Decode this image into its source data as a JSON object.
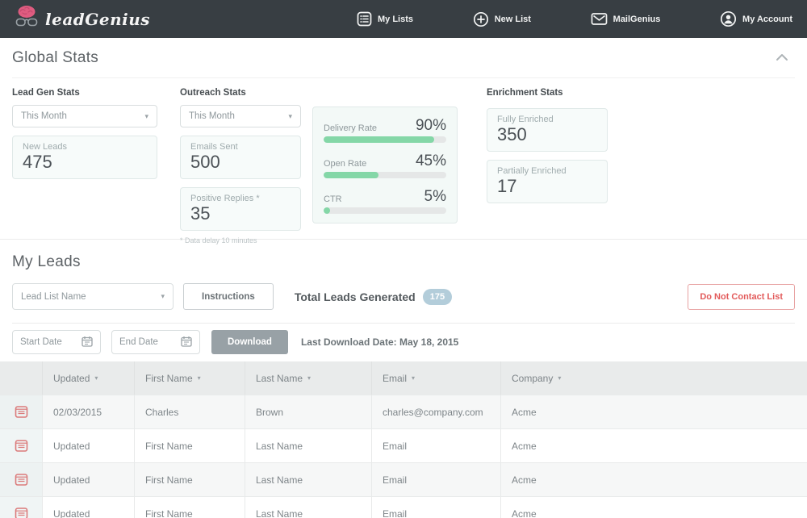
{
  "icons": {
    "caret_down": "▾"
  },
  "colors": {
    "navbar_bg": "#383e43",
    "brand_pink": "#df5c80",
    "bar_green": "#84d7a7",
    "danger_red": "#e25a5a",
    "badge_blue": "#b3cdda",
    "download_gray": "#98a1a6"
  },
  "navbar": {
    "brand": "leadGenius",
    "items": [
      {
        "label": "My Lists",
        "icon": "list"
      },
      {
        "label": "New List",
        "icon": "plus-circle"
      },
      {
        "label": "MailGenius",
        "icon": "envelope"
      },
      {
        "label": "My Account",
        "icon": "user-circle"
      }
    ]
  },
  "global_stats": {
    "title": "Global Stats",
    "lead_gen": {
      "heading": "Lead Gen Stats",
      "period": "This Month",
      "card": {
        "label": "New Leads",
        "value": "475"
      }
    },
    "outreach": {
      "heading": "Outreach Stats",
      "period": "This Month",
      "cards": [
        {
          "label": "Emails Sent",
          "value": "500"
        },
        {
          "label": "Positive Replies *",
          "value": "35"
        }
      ],
      "footnote": "* Data delay 10 minutes"
    },
    "rates": [
      {
        "label": "Delivery Rate",
        "value": "90%",
        "percent": 90
      },
      {
        "label": "Open Rate",
        "value": "45%",
        "percent": 45
      },
      {
        "label": "CTR",
        "value": "5%",
        "percent": 5
      }
    ],
    "enrichment": {
      "heading": "Enrichment Stats",
      "cards": [
        {
          "label": "Fully Enriched",
          "value": "350"
        },
        {
          "label": "Partially Enriched",
          "value": "17"
        }
      ]
    }
  },
  "my_leads": {
    "title": "My Leads",
    "lead_list_placeholder": "Lead List Name",
    "instructions_label": "Instructions",
    "total_label": "Total Leads Generated",
    "total_badge": "175",
    "dnc_label": "Do Not Contact List",
    "start_date_placeholder": "Start Date",
    "end_date_placeholder": "End Date",
    "download_label": "Download",
    "last_download": "Last Download Date: May 18, 2015"
  },
  "table": {
    "columns": [
      "Updated",
      "First Name",
      "Last Name",
      "Email",
      "Company"
    ],
    "rows": [
      [
        "02/03/2015",
        "Charles",
        "Brown",
        "charles@company.com",
        "Acme"
      ],
      [
        "Updated",
        "First Name",
        "Last Name",
        "Email",
        "Acme"
      ],
      [
        "Updated",
        "First Name",
        "Last Name",
        "Email",
        "Acme"
      ],
      [
        "Updated",
        "First Name",
        "Last Name",
        "Email",
        "Acme"
      ]
    ]
  }
}
